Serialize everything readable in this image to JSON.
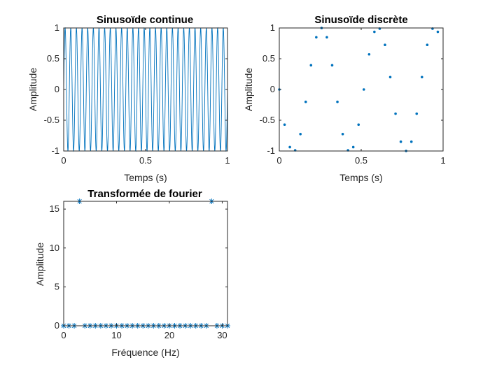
{
  "figure": {
    "background": "#ffffff",
    "series_color": "#0072BD"
  },
  "chart_data": [
    {
      "type": "line",
      "title": "Sinusoïde continue",
      "xlabel": "Temps (s)",
      "ylabel": "Amplitude",
      "xlim": [
        0,
        1
      ],
      "ylim": [
        -1,
        1
      ],
      "xticks": [
        "0",
        "0.5",
        "1"
      ],
      "yticks": [
        "-1",
        "-0.5",
        "0",
        "0.5",
        "1"
      ],
      "grid": false,
      "series": [
        {
          "frequency_hz": 29,
          "amplitude": 1,
          "t_start": 0,
          "t_end": 1,
          "sample_step": 0.001
        }
      ]
    },
    {
      "type": "scatter",
      "title": "Sinusoïde discrète",
      "xlabel": "Temps (s)",
      "ylabel": "Amplitude",
      "xlim": [
        0,
        1
      ],
      "ylim": [
        -1,
        1
      ],
      "xticks": [
        "0",
        "0.5",
        "1"
      ],
      "yticks": [
        "-1",
        "-0.5",
        "0",
        "0.5",
        "1"
      ],
      "grid": false,
      "series": [
        {
          "x": [
            0,
            0.0323,
            0.0645,
            0.0968,
            0.129,
            0.1613,
            0.1935,
            0.2258,
            0.2581,
            0.2903,
            0.3226,
            0.3548,
            0.3871,
            0.4194,
            0.4516,
            0.4839,
            0.5161,
            0.5484,
            0.5806,
            0.6129,
            0.6452,
            0.6774,
            0.7097,
            0.7419,
            0.7742,
            0.8065,
            0.8387,
            0.871,
            0.9032,
            0.9355,
            0.9677
          ],
          "y": [
            0,
            -0.571,
            -0.937,
            -0.989,
            -0.725,
            -0.201,
            0.394,
            0.849,
            0.999,
            0.849,
            0.394,
            -0.201,
            -0.725,
            -0.989,
            -0.937,
            -0.571,
            0,
            0.571,
            0.937,
            0.989,
            0.725,
            0.201,
            -0.394,
            -0.849,
            -0.999,
            -0.849,
            -0.394,
            0.201,
            0.725,
            0.989,
            0.937
          ]
        }
      ]
    },
    {
      "type": "scatter",
      "title": "Transformée de fourier",
      "xlabel": "Fréquence (Hz)",
      "ylabel": "Amplitude",
      "xlim": [
        0,
        31
      ],
      "ylim": [
        0,
        16
      ],
      "xticks": [
        "0",
        "10",
        "20",
        "30"
      ],
      "yticks": [
        "0",
        "5",
        "10",
        "15"
      ],
      "grid": false,
      "series": [
        {
          "x": [
            0,
            1,
            2,
            3,
            4,
            5,
            6,
            7,
            8,
            9,
            10,
            11,
            12,
            13,
            14,
            15,
            16,
            17,
            18,
            19,
            20,
            21,
            22,
            23,
            24,
            25,
            26,
            27,
            28,
            29,
            30,
            31
          ],
          "y": [
            0,
            0,
            0,
            16,
            0,
            0,
            0,
            0,
            0,
            0,
            0,
            0,
            0,
            0,
            0,
            0,
            0,
            0,
            0,
            0,
            0,
            0,
            0,
            0,
            0,
            0,
            0,
            0,
            16,
            0,
            0,
            0
          ]
        }
      ]
    }
  ]
}
